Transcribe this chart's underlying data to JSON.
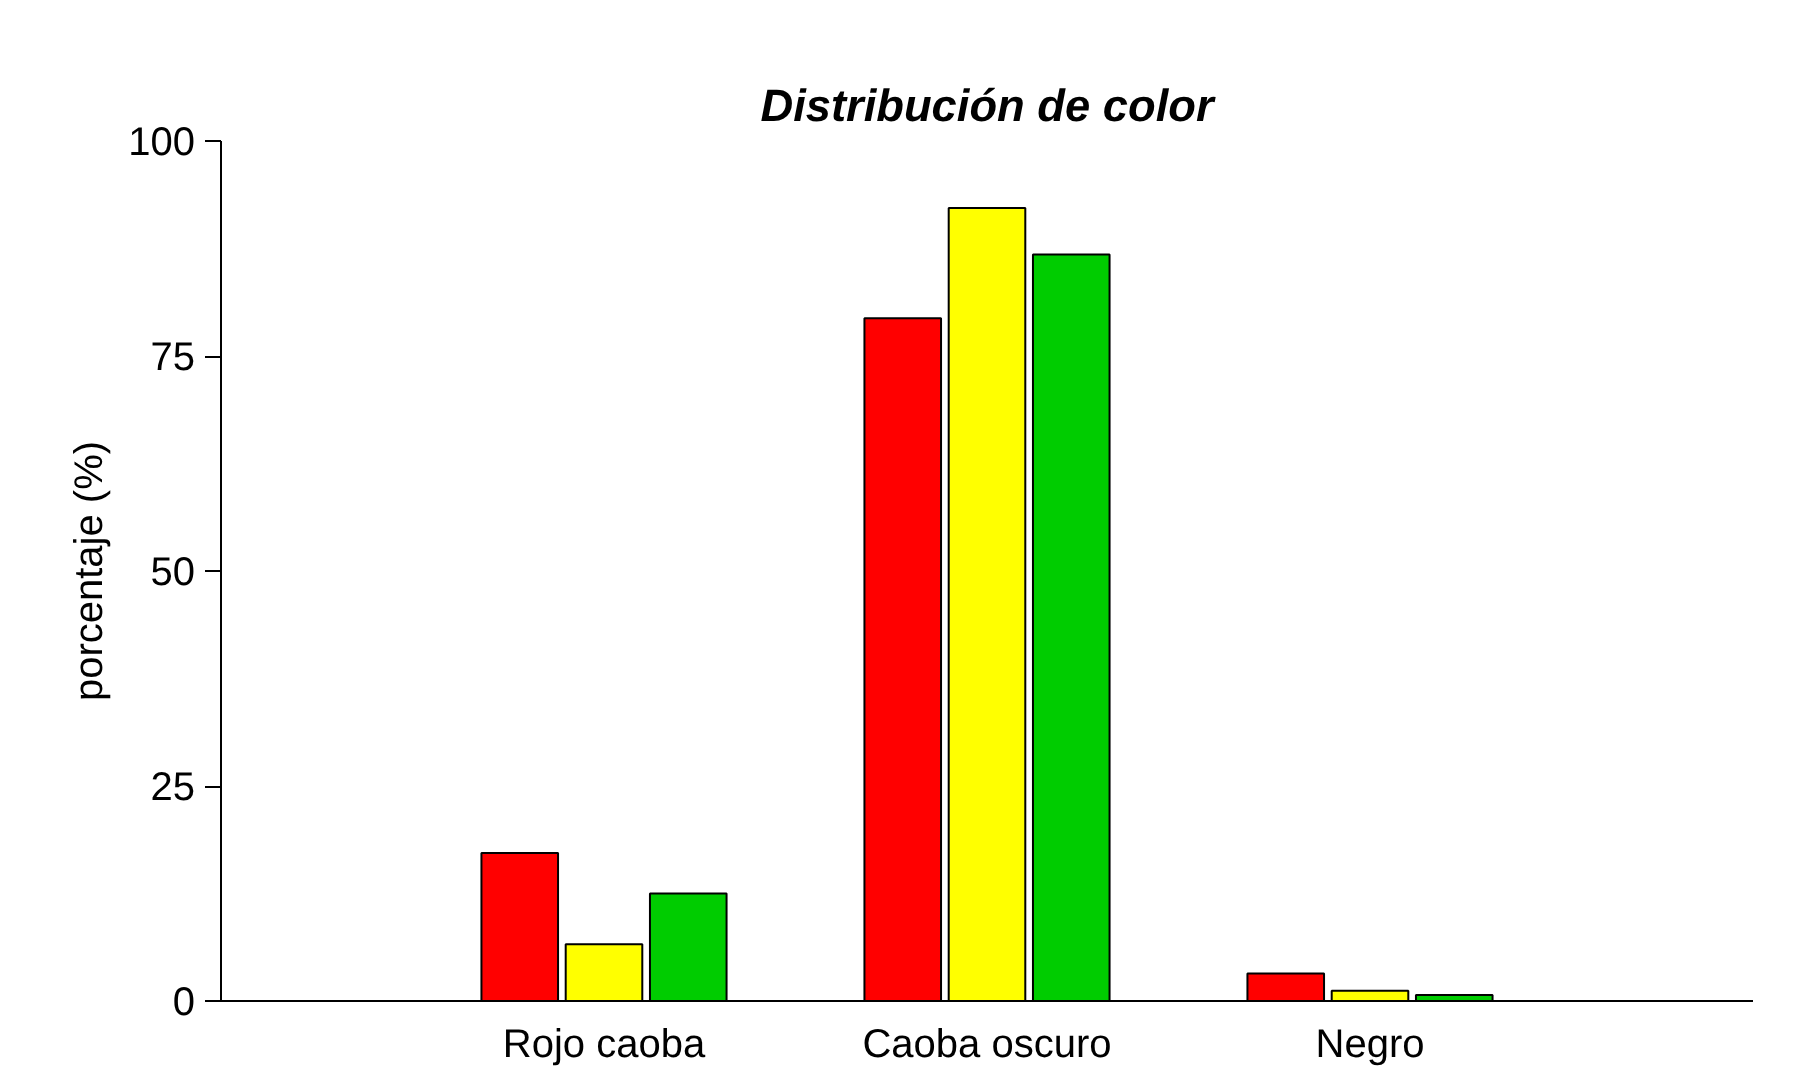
{
  "chart_data": {
    "type": "bar",
    "title": "Distribución de color",
    "ylabel": "porcentaje (%)",
    "categories": [
      "Rojo caoba",
      "Caoba oscuro",
      "Negro"
    ],
    "series": [
      {
        "color": "#ff0000",
        "values": [
          17.2,
          79.4,
          3.2
        ]
      },
      {
        "color": "#ffff00",
        "values": [
          6.6,
          92.2,
          1.2
        ]
      },
      {
        "color": "#00cc00",
        "values": [
          12.5,
          86.8,
          0.7
        ]
      }
    ],
    "ylim": [
      0,
      100
    ],
    "yticks": [
      0,
      25,
      50,
      75,
      100
    ],
    "grid": false
  }
}
